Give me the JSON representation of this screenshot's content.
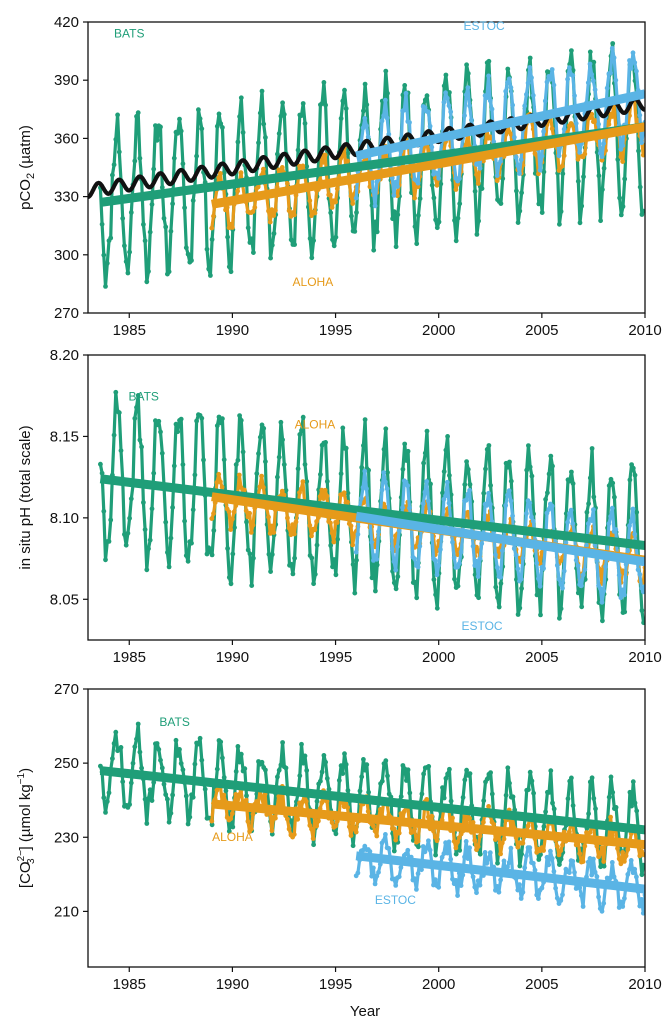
{
  "colors": {
    "BATS": "#1f9e78",
    "ALOHA": "#e69a1a",
    "ESTOC": "#5ab4e5",
    "atmosphere": "#111111"
  },
  "x_title": "Year",
  "chart_data": [
    {
      "id": "pco2",
      "type": "line",
      "ylabel_parts": {
        "main": "pCO",
        "sub": "2",
        "unit": " (µatm)"
      },
      "xlim": [
        1983,
        2010
      ],
      "ylim": [
        270,
        420
      ],
      "xticks": [
        1985,
        1990,
        1995,
        2000,
        2005,
        2010
      ],
      "yticks": [
        270,
        300,
        330,
        360,
        390,
        420
      ],
      "labels": [
        {
          "series": "BATS",
          "text": "BATS",
          "x": 1985.0,
          "y": 412
        },
        {
          "series": "ALOHA",
          "text": "ALOHA",
          "x": 1993.9,
          "y": 284
        },
        {
          "series": "ESTOC",
          "text": "ESTOC",
          "x": 2002.2,
          "y": 416
        }
      ],
      "series": [
        {
          "name": "BATS",
          "start": 1983.6,
          "end": 2010,
          "trend": [
            1983.6,
            328,
            2010,
            366
          ],
          "amplitude": 38,
          "noise": 10,
          "dots": true,
          "seed": 11
        },
        {
          "name": "ALOHA",
          "start": 1989.0,
          "end": 2010,
          "trend": [
            1989.0,
            326,
            2010,
            367
          ],
          "amplitude": 12,
          "noise": 5,
          "dots": true,
          "seed": 23
        },
        {
          "name": "ESTOC",
          "start": 1996.0,
          "end": 2010,
          "trend": [
            1996.0,
            350,
            2010,
            383
          ],
          "amplitude": 22,
          "noise": 6,
          "dots": true,
          "seed": 37
        },
        {
          "name": "atmosphere",
          "start": 1983.0,
          "end": 2010,
          "trend": [
            1983.0,
            333,
            2010,
            378
          ],
          "amplitude": 3.2,
          "noise": 0,
          "dots": false,
          "seed": 5
        }
      ],
      "trends": [
        {
          "series": "BATS",
          "from": [
            1983.6,
            327
          ],
          "to": [
            2010,
            366
          ]
        },
        {
          "series": "ALOHA",
          "from": [
            1989.0,
            326
          ],
          "to": [
            2010,
            366
          ]
        },
        {
          "series": "ESTOC",
          "from": [
            1996.0,
            351
          ],
          "to": [
            2010,
            383
          ]
        }
      ]
    },
    {
      "id": "ph",
      "type": "line",
      "ylabel": "in situ pH (total scale)",
      "xlim": [
        1983,
        2010
      ],
      "ylim": [
        8.025,
        8.2
      ],
      "xticks": [
        1985,
        1990,
        1995,
        2000,
        2005,
        2010
      ],
      "yticks": [
        8.05,
        8.1,
        8.15,
        8.2
      ],
      "ytick_labels": [
        "8.05",
        "8.10",
        "8.15",
        "8.20"
      ],
      "labels": [
        {
          "series": "BATS",
          "text": "BATS",
          "x": 1985.7,
          "y": 8.172
        },
        {
          "series": "ALOHA",
          "text": "ALOHA",
          "x": 1994.0,
          "y": 8.155
        },
        {
          "series": "ESTOC",
          "text": "ESTOC",
          "x": 2002.1,
          "y": 8.031
        }
      ],
      "series": [
        {
          "name": "BATS",
          "start": 1983.6,
          "end": 2010,
          "trend": [
            1983.6,
            8.125,
            2010,
            8.083
          ],
          "amplitude": 0.045,
          "noise": 0.012,
          "dots": true,
          "seed": 41
        },
        {
          "name": "ALOHA",
          "start": 1989.0,
          "end": 2010,
          "trend": [
            1989.0,
            8.113,
            2010,
            8.074
          ],
          "amplitude": 0.013,
          "noise": 0.006,
          "dots": true,
          "seed": 53
        },
        {
          "name": "ESTOC",
          "start": 1996.0,
          "end": 2010,
          "trend": [
            1996.0,
            8.102,
            2010,
            8.074
          ],
          "amplitude": 0.025,
          "noise": 0.006,
          "dots": true,
          "seed": 67
        }
      ],
      "trends": [
        {
          "series": "BATS",
          "from": [
            1983.6,
            8.124
          ],
          "to": [
            2010,
            8.083
          ]
        },
        {
          "series": "ALOHA",
          "from": [
            1989.0,
            8.113
          ],
          "to": [
            2010,
            8.074
          ]
        },
        {
          "series": "ESTOC",
          "from": [
            1996.0,
            8.101
          ],
          "to": [
            2010,
            8.073
          ]
        }
      ]
    },
    {
      "id": "co3",
      "type": "line",
      "ylabel_parts": {
        "open": "[CO",
        "sub": "3",
        "sup": "2−",
        "close": "] (µmol kg",
        "unitsup": "−1",
        "end": ")"
      },
      "xlim": [
        1983,
        2010
      ],
      "ylim": [
        195,
        270
      ],
      "xticks": [
        1985,
        1990,
        1995,
        2000,
        2005,
        2010
      ],
      "yticks": [
        210,
        230,
        250,
        270
      ],
      "labels": [
        {
          "series": "BATS",
          "text": "BATS",
          "x": 1987.2,
          "y": 260
        },
        {
          "series": "ALOHA",
          "text": "ALOHA",
          "x": 1990.0,
          "y": 229
        },
        {
          "series": "ESTOC",
          "text": "ESTOC",
          "x": 1997.9,
          "y": 212
        }
      ],
      "series": [
        {
          "name": "BATS",
          "start": 1983.6,
          "end": 2010,
          "trend": [
            1983.6,
            248,
            2010,
            232
          ],
          "amplitude": 10,
          "noise": 4,
          "dots": true,
          "seed": 71
        },
        {
          "name": "ALOHA",
          "start": 1989.0,
          "end": 2010,
          "trend": [
            1989.0,
            239,
            2010,
            228
          ],
          "amplitude": 4,
          "noise": 3,
          "dots": true,
          "seed": 83
        },
        {
          "name": "ESTOC",
          "start": 1996.0,
          "end": 2010,
          "trend": [
            1996.0,
            225,
            2010,
            216
          ],
          "amplitude": 5,
          "noise": 3,
          "dots": true,
          "seed": 97
        }
      ],
      "trends": [
        {
          "series": "BATS",
          "from": [
            1983.6,
            248
          ],
          "to": [
            2010,
            232
          ]
        },
        {
          "series": "ALOHA",
          "from": [
            1989.0,
            239
          ],
          "to": [
            2010,
            228
          ]
        },
        {
          "series": "ESTOC",
          "from": [
            1996.0,
            225
          ],
          "to": [
            2010,
            216
          ]
        }
      ]
    }
  ]
}
